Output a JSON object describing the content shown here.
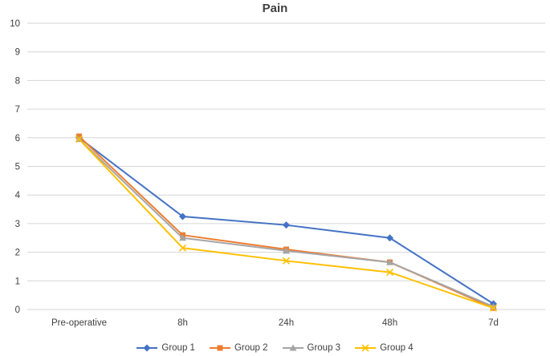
{
  "chart_data": {
    "type": "line",
    "title": "Pain",
    "categories": [
      "Pre-operative",
      "8h",
      "24h",
      "48h",
      "7d"
    ],
    "series": [
      {
        "name": "Group 1",
        "color": "#4472C4",
        "marker": "diamond",
        "values": [
          6.0,
          3.25,
          2.95,
          2.5,
          0.2
        ]
      },
      {
        "name": "Group 2",
        "color": "#ED7D31",
        "marker": "square",
        "values": [
          6.05,
          2.6,
          2.1,
          1.65,
          0.05
        ]
      },
      {
        "name": "Group 3",
        "color": "#A5A5A5",
        "marker": "triangle",
        "values": [
          5.95,
          2.5,
          2.05,
          1.65,
          0.1
        ]
      },
      {
        "name": "Group 4",
        "color": "#FFC000",
        "marker": "x",
        "values": [
          5.95,
          2.15,
          1.7,
          1.3,
          0.05
        ]
      }
    ],
    "ylim": [
      0,
      10
    ],
    "ytick_step": 1,
    "grid": true,
    "gridline_color": "#D6D6D6",
    "legend_position": "bottom"
  }
}
